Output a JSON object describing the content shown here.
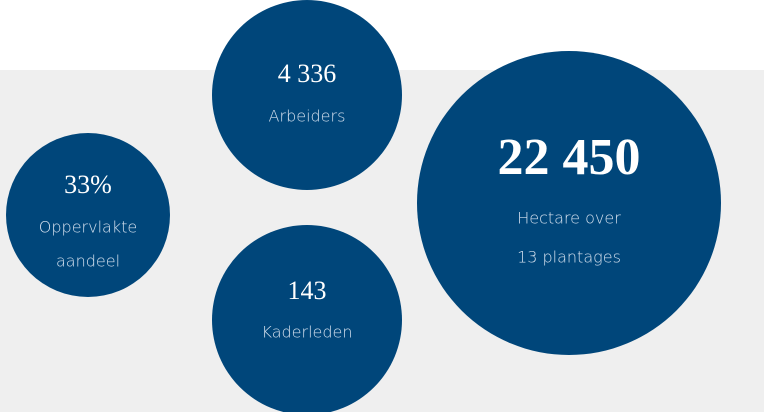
{
  "stats": [
    {
      "value": "4 336",
      "label": [
        "Arbeiders"
      ]
    },
    {
      "value": "33%",
      "label": [
        "Oppervlakte",
        "aandeel"
      ]
    },
    {
      "value": "143",
      "label": [
        "Kaderleden"
      ]
    },
    {
      "value": "22 450",
      "label": [
        "Hectare over",
        "13 plantages"
      ]
    }
  ]
}
